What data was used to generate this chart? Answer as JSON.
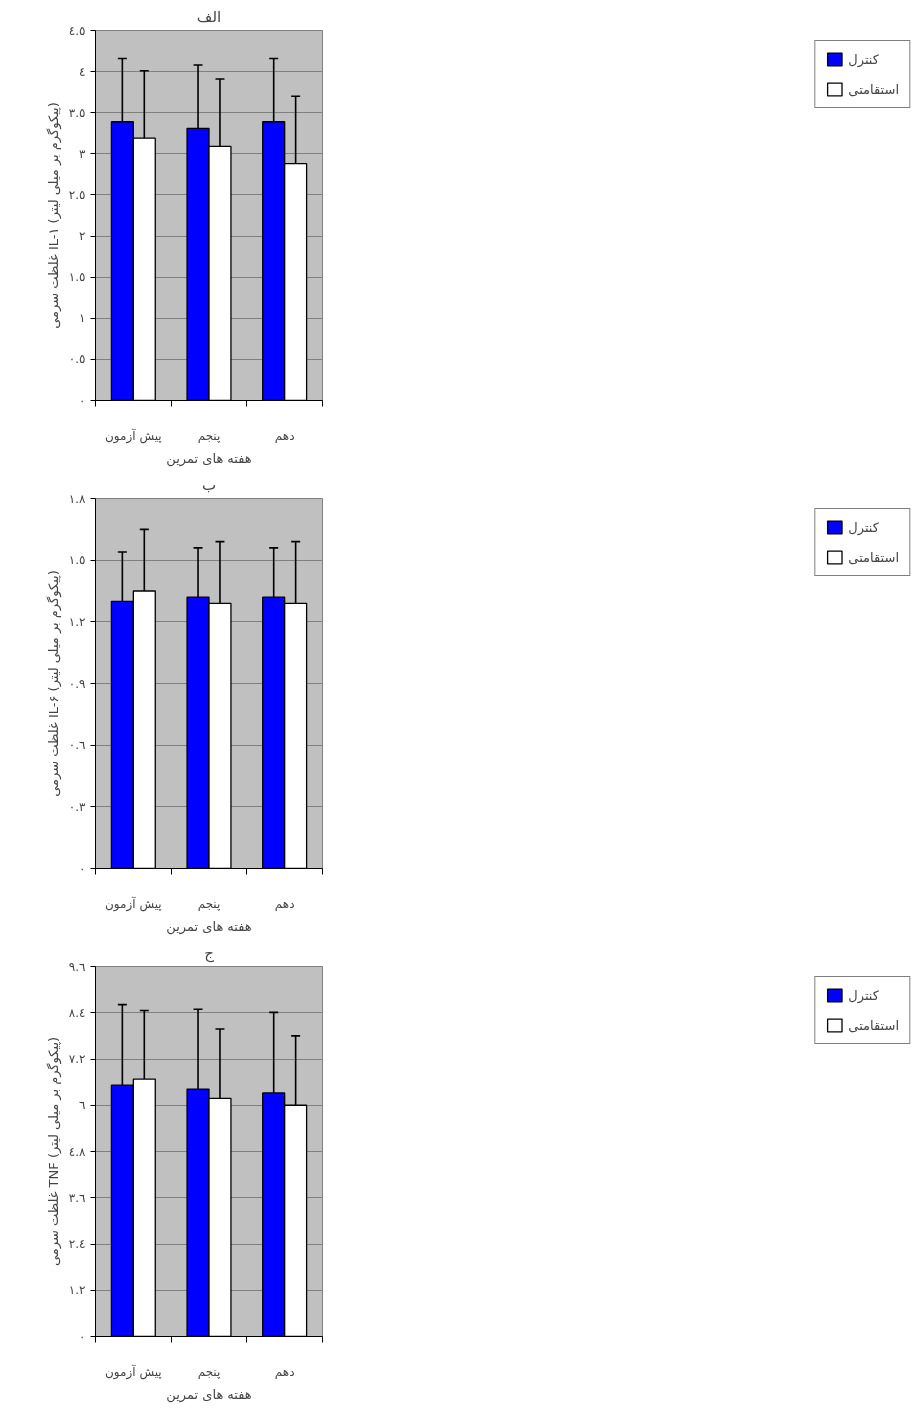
{
  "chart_data": [
    {
      "type": "bar",
      "title": "الف",
      "xlabel": "هفته های تمرین",
      "ylabel": "غلظت سرمی IL-۱ (پیکوگرم بر میلی لیتر)",
      "categories": [
        "پیش آزمون",
        "پنجم",
        "دهم"
      ],
      "series": [
        {
          "name": "کنترل",
          "color": "#0000ff",
          "values": [
            3.39,
            3.31,
            3.39
          ],
          "errors": [
            0.77,
            0.77,
            0.77
          ]
        },
        {
          "name": "استقامتی",
          "color": "#ffffff",
          "values": [
            3.19,
            3.09,
            2.88
          ],
          "errors": [
            0.82,
            0.82,
            0.82
          ]
        }
      ],
      "ylim": [
        0,
        4.5
      ],
      "yticks": [
        {
          "value": 0,
          "label": "٠"
        },
        {
          "value": 0.5,
          "label": "٠.٥"
        },
        {
          "value": 1,
          "label": "١"
        },
        {
          "value": 1.5,
          "label": "١.٥"
        },
        {
          "value": 2,
          "label": "٢"
        },
        {
          "value": 2.5,
          "label": "٢.٥"
        },
        {
          "value": 3,
          "label": "٣"
        },
        {
          "value": 3.5,
          "label": "٣.٥"
        },
        {
          "value": 4,
          "label": "٤"
        },
        {
          "value": 4.5,
          "label": "٤.٥"
        }
      ],
      "grid": "y",
      "legend": "right"
    },
    {
      "type": "bar",
      "title": "ب",
      "xlabel": "هفته های تمرین",
      "ylabel": "غلظت سرمی IL-۶ (پیکوگرم بر میلی لیتر)",
      "categories": [
        "پیش آزمون",
        "پنجم",
        "دهم"
      ],
      "series": [
        {
          "name": "کنترل",
          "color": "#0000ff",
          "values": [
            1.3,
            1.32,
            1.32
          ],
          "errors": [
            0.24,
            0.24,
            0.24
          ]
        },
        {
          "name": "استقامتی",
          "color": "#ffffff",
          "values": [
            1.35,
            1.29,
            1.29
          ],
          "errors": [
            0.3,
            0.3,
            0.3
          ]
        }
      ],
      "ylim": [
        0,
        1.8
      ],
      "yticks": [
        {
          "value": 0,
          "label": "٠"
        },
        {
          "value": 0.3,
          "label": "٠.٣"
        },
        {
          "value": 0.6,
          "label": "٠.٦"
        },
        {
          "value": 0.9,
          "label": "٠.٩"
        },
        {
          "value": 1.2,
          "label": "١.٢"
        },
        {
          "value": 1.5,
          "label": "١.٥"
        },
        {
          "value": 1.8,
          "label": "١.٨"
        }
      ],
      "grid": "y",
      "legend": "right"
    },
    {
      "type": "bar",
      "title": "ج",
      "xlabel": "هفته های تمرین",
      "ylabel": "غلظت سرمی TNF (پیکوگرم بر میلی لیتر)",
      "categories": [
        "پیش آزمون",
        "پنجم",
        "دهم"
      ],
      "series": [
        {
          "name": "کنترل",
          "color": "#0000ff",
          "values": [
            6.52,
            6.42,
            6.32
          ],
          "errors": [
            2.09,
            2.07,
            2.09
          ]
        },
        {
          "name": "استقامتی",
          "color": "#ffffff",
          "values": [
            6.68,
            6.18,
            6.0
          ],
          "errors": [
            1.78,
            1.8,
            1.8
          ]
        }
      ],
      "ylim": [
        0,
        9.6
      ],
      "yticks": [
        {
          "value": 0,
          "label": "٠"
        },
        {
          "value": 1.2,
          "label": "١.٢"
        },
        {
          "value": 2.4,
          "label": "٢.٤"
        },
        {
          "value": 3.6,
          "label": "٣.٦"
        },
        {
          "value": 4.8,
          "label": "٤.٨"
        },
        {
          "value": 6,
          "label": "٦"
        },
        {
          "value": 7.2,
          "label": "٧.٢"
        },
        {
          "value": 8.4,
          "label": "٨.٤"
        },
        {
          "value": 9.6,
          "label": "٩.٦"
        }
      ],
      "grid": "y",
      "legend": "right"
    }
  ]
}
